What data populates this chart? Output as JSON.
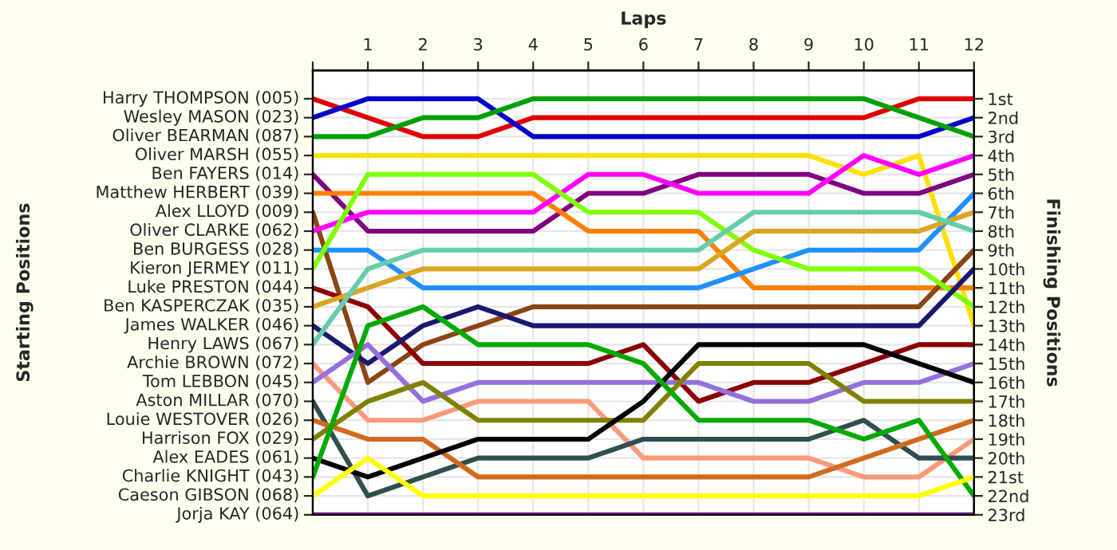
{
  "chart_data": {
    "type": "line",
    "xlabel": "Laps",
    "y2label": "Finishing Positions",
    "x": [
      0,
      1,
      2,
      3,
      4,
      5,
      6,
      7,
      8,
      9,
      10,
      11,
      12
    ],
    "xlim": [
      0,
      12
    ],
    "xticks": [
      {
        "value": 0,
        "label": null
      },
      1,
      2,
      3,
      4,
      5,
      6,
      7,
      8,
      9,
      10,
      11,
      12
    ],
    "annotations": [
      "Harry THOMPSON (005)",
      "Wesley MASON (023)",
      "Oliver BEARMAN (087)",
      "Oliver MARSH (055)",
      "Ben FAYERS (014)",
      "Matthew HERBERT (039)",
      "Alex LLOYD (009)",
      "Oliver CLARKE (062)",
      "Ben BURGESS (028)",
      "Kieron JERMEY (011)",
      "Luke PRESTON (044)",
      "Ben KASPERCZAK (035)",
      "James WALKER (046)",
      "Henry LAWS (067)",
      "Archie BROWN (072)",
      "Tom LEBBON (045)",
      "Aston MILLAR (070)",
      "Louie WESTOVER (026)",
      "Harrison FOX (029)",
      "Alex EADES (061)",
      "Charlie KNIGHT (043)",
      "Caeson GIBSON (068)",
      "Jorja KAY (064)",
      "Starting Positions"
    ],
    "y2lim": [
      23,
      -0.5
    ],
    "y2ticks": [
      {
        "value": 1,
        "label": "1st"
      },
      {
        "value": 2,
        "label": "2nd"
      },
      {
        "value": 3,
        "label": "3rd"
      },
      {
        "value": 4,
        "label": "4th"
      },
      {
        "value": 5,
        "label": "5th"
      },
      {
        "value": 6,
        "label": "6th"
      },
      {
        "value": 7,
        "label": "7th"
      },
      {
        "value": 8,
        "label": "8th"
      },
      {
        "value": 9,
        "label": "9th"
      },
      {
        "value": 10,
        "label": "10th"
      },
      {
        "value": 11,
        "label": "11th"
      },
      {
        "value": 12,
        "label": "12th"
      },
      {
        "value": 13,
        "label": "13th"
      },
      {
        "value": 14,
        "label": "14th"
      },
      {
        "value": 15,
        "label": "15th"
      },
      {
        "value": 16,
        "label": "16th"
      },
      {
        "value": 17,
        "label": "17th"
      },
      {
        "value": 18,
        "label": "18th"
      },
      {
        "value": 19,
        "label": "19th"
      },
      {
        "value": 20,
        "label": "20th"
      },
      {
        "value": 21,
        "label": "21st"
      },
      {
        "value": 22,
        "label": "22nd"
      },
      {
        "value": 23,
        "label": "23rd"
      }
    ],
    "grid": true,
    "legend": false,
    "marker": "none",
    "line_style": "solid",
    "series": [
      {
        "color": "#e00000",
        "axis": "y2",
        "values": [
          1,
          2,
          3,
          3,
          2,
          2,
          2,
          2,
          2,
          2,
          2,
          1,
          1
        ]
      },
      {
        "color": "#0000cc",
        "axis": "y2",
        "values": [
          2,
          1,
          1,
          1,
          3,
          3,
          3,
          3,
          3,
          3,
          3,
          3,
          2
        ]
      },
      {
        "color": "#00a000",
        "axis": "y2",
        "values": [
          3,
          3,
          2,
          2,
          1,
          1,
          1,
          1,
          1,
          1,
          1,
          2,
          3
        ]
      },
      {
        "color": "#ffe000",
        "axis": "y2",
        "values": [
          4,
          4,
          4,
          4,
          4,
          4,
          4,
          4,
          4,
          4,
          5,
          4,
          13
        ]
      },
      {
        "color": "#800080",
        "axis": "y2",
        "values": [
          5,
          8,
          8,
          8,
          8,
          6,
          6,
          5,
          5,
          5,
          6,
          6,
          5
        ]
      },
      {
        "color": "#ff8000",
        "axis": "y2",
        "values": [
          6,
          6,
          6,
          6,
          6,
          8,
          8,
          8,
          11,
          11,
          11,
          11,
          11
        ]
      },
      {
        "color": "#8b4513",
        "axis": "y2",
        "values": [
          7,
          16,
          14,
          13,
          12,
          12,
          12,
          12,
          12,
          12,
          12,
          12,
          9
        ]
      },
      {
        "color": "#ff00ff",
        "axis": "y2",
        "values": [
          8,
          7,
          7,
          7,
          7,
          5,
          5,
          6,
          6,
          6,
          4,
          5,
          4
        ]
      },
      {
        "color": "#1e90ff",
        "axis": "y2",
        "values": [
          9,
          9,
          11,
          11,
          11,
          11,
          11,
          11,
          10,
          9,
          9,
          9,
          6
        ]
      },
      {
        "color": "#80ff00",
        "axis": "y2",
        "values": [
          10,
          5,
          5,
          5,
          5,
          7,
          7,
          7,
          9,
          10,
          10,
          10,
          12
        ]
      },
      {
        "color": "#8b0000",
        "axis": "y2",
        "values": [
          11,
          12,
          15,
          15,
          15,
          15,
          14,
          17,
          16,
          16,
          15,
          14,
          14
        ]
      },
      {
        "color": "#daa520",
        "axis": "y2",
        "values": [
          12,
          11,
          10,
          10,
          10,
          10,
          10,
          10,
          8,
          8,
          8,
          8,
          7
        ]
      },
      {
        "color": "#191970",
        "axis": "y2",
        "values": [
          13,
          15,
          13,
          12,
          13,
          13,
          13,
          13,
          13,
          13,
          13,
          13,
          10
        ]
      },
      {
        "color": "#66cdaa",
        "axis": "y2",
        "values": [
          14,
          10,
          9,
          9,
          9,
          9,
          9,
          9,
          7,
          7,
          7,
          7,
          8
        ]
      },
      {
        "color": "#fa9a7a",
        "axis": "y2",
        "values": [
          15,
          18,
          18,
          17,
          17,
          17,
          20,
          20,
          20,
          20,
          21,
          21,
          19
        ]
      },
      {
        "color": "#9370db",
        "axis": "y2",
        "values": [
          16,
          14,
          17,
          16,
          16,
          16,
          16,
          16,
          17,
          17,
          16,
          16,
          15
        ]
      },
      {
        "color": "#2f4f4f",
        "axis": "y2",
        "values": [
          17,
          22,
          21,
          20,
          20,
          20,
          19,
          19,
          19,
          19,
          18,
          20,
          20
        ]
      },
      {
        "color": "#d2691e",
        "axis": "y2",
        "values": [
          18,
          19,
          19,
          21,
          21,
          21,
          21,
          21,
          21,
          21,
          20,
          19,
          18
        ]
      },
      {
        "color": "#808000",
        "axis": "y2",
        "values": [
          19,
          17,
          16,
          18,
          18,
          18,
          18,
          15,
          15,
          15,
          17,
          17,
          17
        ]
      },
      {
        "color": "#000000",
        "axis": "y2",
        "values": [
          20,
          21,
          20,
          19,
          19,
          19,
          17,
          14,
          14,
          14,
          14,
          15,
          16
        ]
      },
      {
        "color": "#00aa00",
        "axis": "y2",
        "values": [
          21,
          13,
          12,
          14,
          14,
          14,
          15,
          18,
          18,
          18,
          19,
          18,
          22
        ]
      },
      {
        "color": "#ffff00",
        "axis": "y2",
        "values": [
          22,
          20,
          22,
          22,
          22,
          22,
          22,
          22,
          22,
          22,
          22,
          22,
          21
        ]
      },
      {
        "color": "#7a1a8a",
        "axis": "y2",
        "values": [
          23,
          23,
          23,
          23,
          23,
          23,
          23,
          23,
          23,
          23,
          23,
          23,
          23
        ]
      }
    ]
  }
}
